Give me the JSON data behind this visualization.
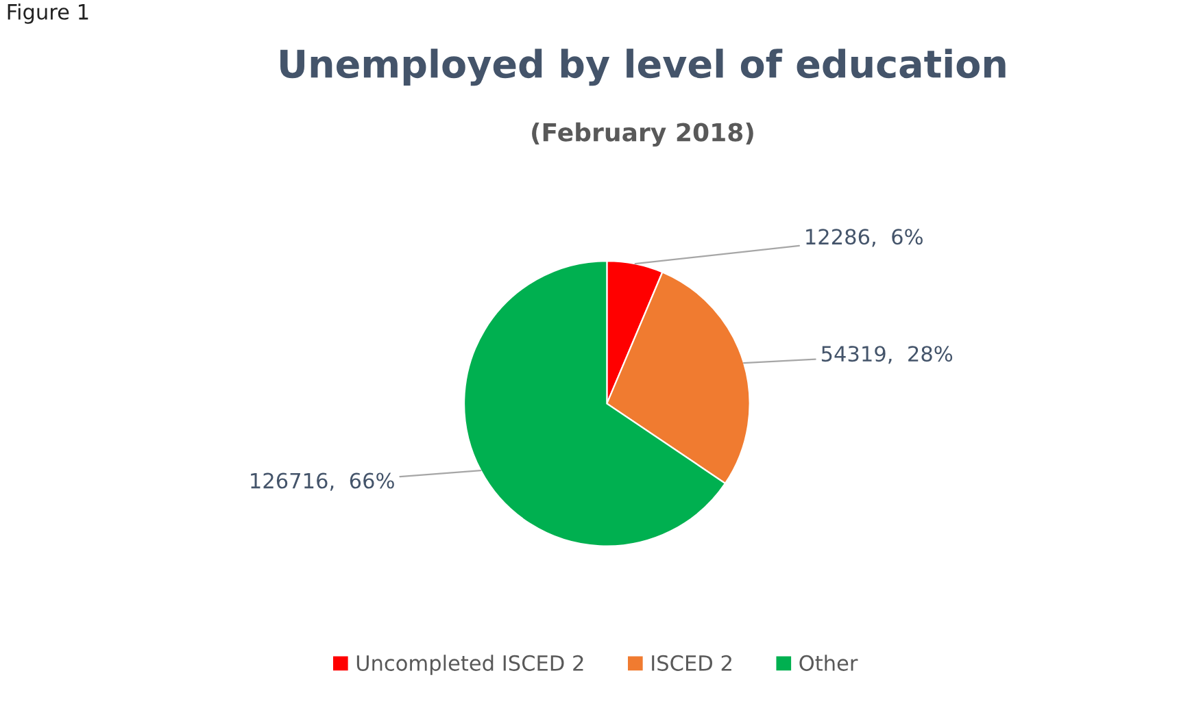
{
  "chart_data": {
    "type": "pie",
    "title": "Unemployed by level of education",
    "subtitle": "(February 2018)",
    "annotations": [
      "Figure 1"
    ],
    "categories": [
      "Uncompleted ISCED 2",
      "ISCED 2",
      "Other"
    ],
    "values": [
      12286,
      54319,
      126716
    ],
    "colors": [
      "#ff0000",
      "#f07b30",
      "#00b050"
    ],
    "value_labels": [
      "12286,  6%",
      "54319,  28%",
      "126716,  66%"
    ],
    "legend": "bottom"
  }
}
